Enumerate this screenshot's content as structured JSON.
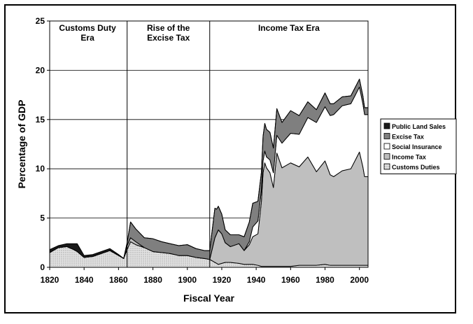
{
  "chart_data": {
    "type": "area",
    "title": "",
    "xlabel": "Fiscal Year",
    "ylabel": "Percentage of GDP",
    "xlim": [
      1820,
      2005
    ],
    "ylim": [
      0,
      25
    ],
    "xticks": [
      "1820",
      "1840",
      "1860",
      "1880",
      "1900",
      "1920",
      "1940",
      "1960",
      "1980",
      "2000"
    ],
    "yticks": [
      "0",
      "5",
      "10",
      "15",
      "20",
      "25"
    ],
    "grid": "horizontal",
    "legend_position": "right",
    "era_dividers": [
      1865,
      1913
    ],
    "eras": [
      {
        "label_lines": [
          "Customs Duty",
          "Era"
        ],
        "x_center": 1842
      },
      {
        "label_lines": [
          "Rise of the",
          "Excise Tax"
        ],
        "x_center": 1889
      },
      {
        "label_lines": [
          "Income Tax Era"
        ],
        "x_center": 1959
      }
    ],
    "x": [
      1820,
      1825,
      1830,
      1834,
      1836,
      1840,
      1845,
      1850,
      1855,
      1860,
      1863,
      1865,
      1867,
      1870,
      1875,
      1880,
      1885,
      1890,
      1895,
      1900,
      1905,
      1910,
      1913,
      1916,
      1917,
      1918,
      1920,
      1922,
      1925,
      1930,
      1933,
      1936,
      1938,
      1941,
      1943,
      1944,
      1945,
      1946,
      1948,
      1950,
      1952,
      1955,
      1960,
      1965,
      1970,
      1975,
      1980,
      1983,
      1985,
      1990,
      1995,
      2000,
      2002,
      2003,
      2005
    ],
    "series": [
      {
        "name": "Customs Duties",
        "color": "#d4d4d4",
        "values": [
          1.5,
          2.0,
          2.1,
          1.8,
          1.6,
          1.0,
          1.1,
          1.4,
          1.7,
          1.2,
          0.9,
          1.8,
          2.6,
          2.3,
          2.0,
          1.6,
          1.5,
          1.4,
          1.2,
          1.2,
          1.0,
          0.9,
          0.8,
          0.5,
          0.4,
          0.3,
          0.4,
          0.5,
          0.5,
          0.4,
          0.3,
          0.3,
          0.3,
          0.2,
          0.1,
          0.1,
          0.1,
          0.1,
          0.1,
          0.1,
          0.1,
          0.1,
          0.1,
          0.2,
          0.2,
          0.2,
          0.3,
          0.2,
          0.2,
          0.2,
          0.2,
          0.2,
          0.2,
          0.2,
          0.2
        ]
      },
      {
        "name": "Income Tax",
        "color": "#bfbfbf",
        "values": [
          0,
          0,
          0,
          0,
          0,
          0,
          0,
          0,
          0,
          0,
          0,
          0.4,
          0.4,
          0.3,
          0,
          0,
          0,
          0,
          0,
          0,
          0,
          0,
          0,
          2.5,
          3.0,
          3.5,
          3.0,
          2.0,
          1.6,
          2.0,
          1.4,
          2.0,
          2.8,
          3.2,
          6.5,
          9.5,
          10.5,
          10.0,
          9.5,
          8.0,
          11.5,
          10.0,
          10.5,
          10.0,
          11.0,
          9.5,
          10.5,
          9.2,
          9.0,
          9.6,
          9.8,
          11.5,
          10.0,
          9.0,
          9.0
        ]
      },
      {
        "name": "Social Insurance",
        "color": "#ffffff",
        "values": [
          0,
          0,
          0,
          0,
          0,
          0,
          0,
          0,
          0,
          0,
          0,
          0,
          0,
          0,
          0,
          0,
          0,
          0,
          0,
          0,
          0,
          0,
          0,
          0,
          0,
          0,
          0,
          0,
          0,
          0,
          0,
          0.3,
          1.0,
          1.3,
          1.2,
          1.2,
          1.2,
          1.1,
          1.3,
          1.5,
          1.8,
          2.5,
          3.0,
          3.3,
          4.0,
          5.0,
          5.5,
          6.0,
          6.3,
          6.6,
          6.6,
          6.6,
          6.4,
          6.3,
          6.3
        ]
      },
      {
        "name": "Excise Tax",
        "color": "#7f7f7f",
        "values": [
          0,
          0,
          0,
          0,
          0,
          0,
          0,
          0,
          0,
          0,
          0,
          0.3,
          1.6,
          1.3,
          1.0,
          1.3,
          1.1,
          1.0,
          1.0,
          1.1,
          0.9,
          0.8,
          0.9,
          3.0,
          2.5,
          2.4,
          2.0,
          1.3,
          1.2,
          0.9,
          1.4,
          2.0,
          2.4,
          2.0,
          1.8,
          2.5,
          2.8,
          2.8,
          2.8,
          2.5,
          2.7,
          2.1,
          2.3,
          1.9,
          1.6,
          1.3,
          1.4,
          1.2,
          1.1,
          0.9,
          0.8,
          0.8,
          0.8,
          0.7,
          0.7
        ]
      },
      {
        "name": "Public Land Sales",
        "color": "#1a1a1a",
        "values": [
          0.3,
          0.2,
          0.3,
          0.6,
          0.8,
          0.2,
          0.2,
          0.2,
          0.2,
          0.1,
          0,
          0,
          0,
          0,
          0,
          0,
          0,
          0,
          0,
          0,
          0,
          0,
          0,
          0,
          0,
          0,
          0,
          0,
          0,
          0,
          0,
          0,
          0,
          0,
          0,
          0,
          0,
          0,
          0,
          0,
          0,
          0,
          0,
          0,
          0,
          0,
          0,
          0,
          0,
          0,
          0,
          0,
          0,
          0,
          0
        ]
      }
    ]
  }
}
